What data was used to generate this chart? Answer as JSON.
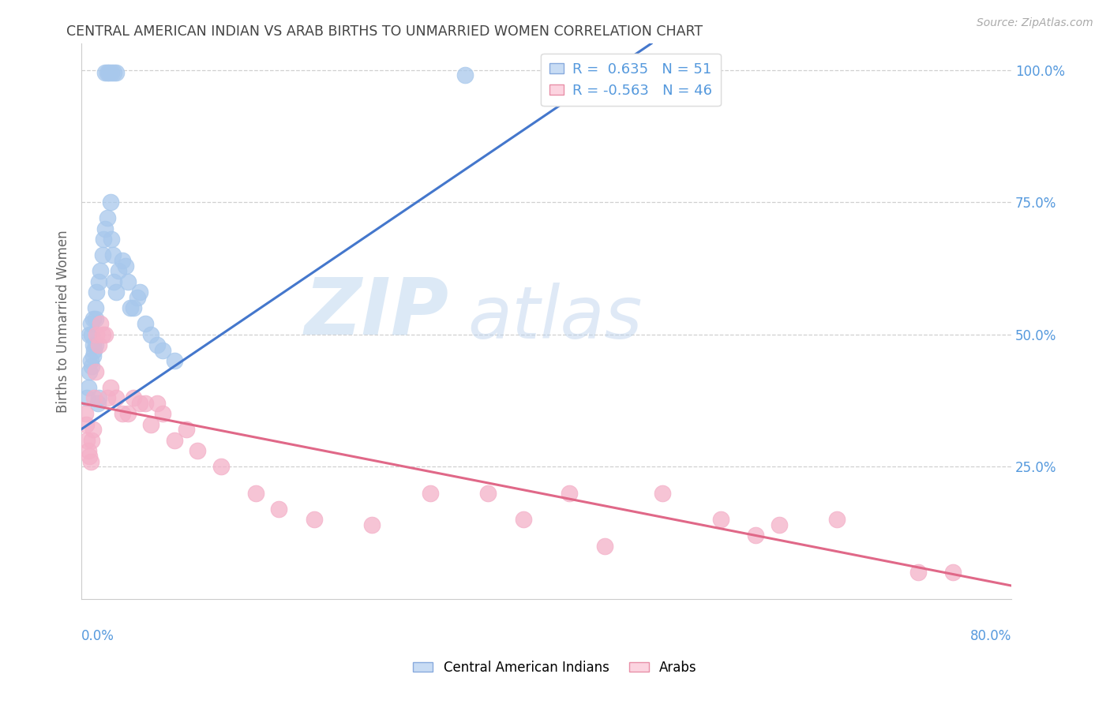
{
  "title": "CENTRAL AMERICAN INDIAN VS ARAB BIRTHS TO UNMARRIED WOMEN CORRELATION CHART",
  "source": "Source: ZipAtlas.com",
  "ylabel": "Births to Unmarried Women",
  "legend_blue_label": "Central American Indians",
  "legend_pink_label": "Arabs",
  "r_blue": 0.635,
  "n_blue": 51,
  "r_pink": -0.563,
  "n_pink": 46,
  "blue_color": "#a8c8ec",
  "pink_color": "#f4b0c8",
  "blue_line_color": "#4477cc",
  "pink_line_color": "#e06888",
  "xmin": 0.0,
  "xmax": 0.8,
  "ymin": 0.0,
  "ymax": 1.05,
  "grid_color": "#d0d0d0",
  "bg_color": "#ffffff",
  "title_color": "#444444",
  "tick_color": "#5599dd",
  "blue_line_x0": 0.033,
  "blue_line_y0": 0.37,
  "blue_line_x1": 0.46,
  "blue_line_y1": 1.005,
  "pink_line_x0": 0.0,
  "pink_line_y0": 0.37,
  "pink_line_x1": 0.8,
  "pink_line_y1": 0.025,
  "blue_x": [
    0.007,
    0.008,
    0.009,
    0.01,
    0.01,
    0.012,
    0.012,
    0.013,
    0.015,
    0.016,
    0.018,
    0.019,
    0.02,
    0.022,
    0.025,
    0.026,
    0.027,
    0.028,
    0.03,
    0.032,
    0.035,
    0.038,
    0.04,
    0.042,
    0.045,
    0.048,
    0.05,
    0.055,
    0.06,
    0.065,
    0.07,
    0.08,
    0.005,
    0.006,
    0.007,
    0.008,
    0.009,
    0.01,
    0.011,
    0.012,
    0.014,
    0.015,
    0.33,
    0.43,
    0.44,
    0.02,
    0.022,
    0.024,
    0.026,
    0.028,
    0.03
  ],
  "blue_y": [
    0.5,
    0.52,
    0.5,
    0.53,
    0.48,
    0.55,
    0.53,
    0.58,
    0.6,
    0.62,
    0.65,
    0.68,
    0.7,
    0.72,
    0.75,
    0.68,
    0.65,
    0.6,
    0.58,
    0.62,
    0.64,
    0.63,
    0.6,
    0.55,
    0.55,
    0.57,
    0.58,
    0.52,
    0.5,
    0.48,
    0.47,
    0.45,
    0.38,
    0.4,
    0.43,
    0.45,
    0.44,
    0.46,
    0.47,
    0.48,
    0.37,
    0.38,
    0.99,
    0.99,
    0.99,
    0.995,
    0.995,
    0.995,
    0.995,
    0.995,
    0.995
  ],
  "pink_x": [
    0.003,
    0.004,
    0.005,
    0.006,
    0.007,
    0.008,
    0.009,
    0.01,
    0.011,
    0.012,
    0.013,
    0.015,
    0.016,
    0.018,
    0.02,
    0.022,
    0.025,
    0.03,
    0.035,
    0.04,
    0.045,
    0.05,
    0.055,
    0.06,
    0.065,
    0.07,
    0.08,
    0.09,
    0.1,
    0.12,
    0.15,
    0.17,
    0.2,
    0.25,
    0.3,
    0.35,
    0.38,
    0.42,
    0.45,
    0.5,
    0.55,
    0.58,
    0.6,
    0.65,
    0.72,
    0.75
  ],
  "pink_y": [
    0.35,
    0.33,
    0.3,
    0.28,
    0.27,
    0.26,
    0.3,
    0.32,
    0.38,
    0.43,
    0.5,
    0.48,
    0.52,
    0.5,
    0.5,
    0.38,
    0.4,
    0.38,
    0.35,
    0.35,
    0.38,
    0.37,
    0.37,
    0.33,
    0.37,
    0.35,
    0.3,
    0.32,
    0.28,
    0.25,
    0.2,
    0.17,
    0.15,
    0.14,
    0.2,
    0.2,
    0.15,
    0.2,
    0.1,
    0.2,
    0.15,
    0.12,
    0.14,
    0.15,
    0.05,
    0.05
  ]
}
